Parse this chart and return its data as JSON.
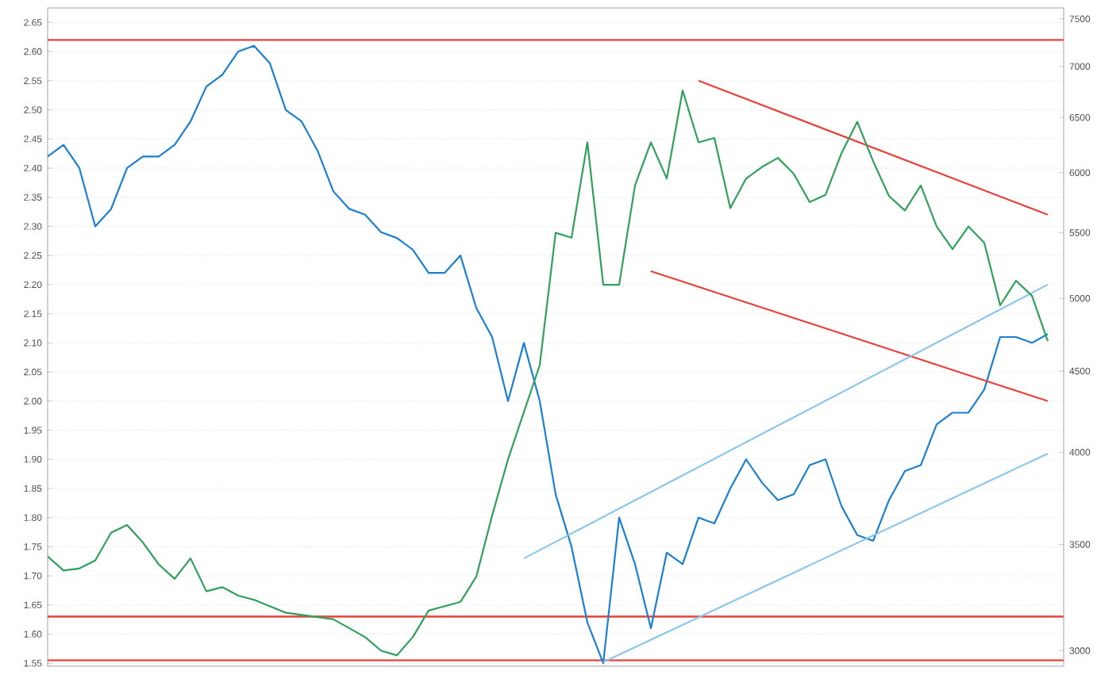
{
  "chart_data": {
    "type": "line",
    "log": "y2",
    "grid": "y",
    "tick_labels": "y",
    "marker": "none",
    "line_style": "solid",
    "categories": [
      null,
      null,
      null,
      null,
      null,
      null,
      null,
      null,
      null,
      null,
      null,
      null,
      null,
      null,
      null,
      null,
      null,
      null,
      null,
      null,
      null,
      null,
      null,
      null,
      null,
      null,
      null,
      null,
      null,
      null,
      null,
      null,
      null,
      null,
      null,
      null,
      null,
      null,
      null,
      null,
      null,
      null,
      null,
      null,
      null,
      null,
      null,
      null,
      null,
      null,
      null,
      null,
      null,
      null,
      null,
      null,
      null,
      null,
      null,
      null,
      null,
      null,
      null,
      null
    ],
    "ylim": [
      1.545,
      2.675
    ],
    "y2lim": [
      2934,
      7620
    ],
    "yticks": [
      {
        "value": 1.55,
        "label": "1.55"
      },
      {
        "value": 1.6,
        "label": "1.60"
      },
      {
        "value": 1.65,
        "label": "1.65"
      },
      {
        "value": 1.7,
        "label": "1.70"
      },
      {
        "value": 1.75,
        "label": "1.75"
      },
      {
        "value": 1.8,
        "label": "1.80"
      },
      {
        "value": 1.85,
        "label": "1.85"
      },
      {
        "value": 1.9,
        "label": "1.90"
      },
      {
        "value": 1.95,
        "label": "1.95"
      },
      {
        "value": 2.0,
        "label": "2.00"
      },
      {
        "value": 2.05,
        "label": "2.05"
      },
      {
        "value": 2.1,
        "label": "2.10"
      },
      {
        "value": 2.15,
        "label": "2.15"
      },
      {
        "value": 2.2,
        "label": "2.20"
      },
      {
        "value": 2.25,
        "label": "2.25"
      },
      {
        "value": 2.3,
        "label": "2.30"
      },
      {
        "value": 2.35,
        "label": "2.35"
      },
      {
        "value": 2.4,
        "label": "2.40"
      },
      {
        "value": 2.45,
        "label": "2.45"
      },
      {
        "value": 2.5,
        "label": "2.50"
      },
      {
        "value": 2.55,
        "label": "2.55"
      },
      {
        "value": 2.6,
        "label": "2.60"
      },
      {
        "value": 2.65,
        "label": "2.65"
      }
    ],
    "y2ticks": [
      3000,
      3500,
      4000,
      4500,
      5000,
      5500,
      6000,
      6500,
      7000,
      7500
    ],
    "series": [
      {
        "color": "#1a7fd0",
        "values": [
          2.42,
          2.44,
          2.4,
          2.3,
          2.33,
          2.4,
          2.42,
          2.42,
          2.44,
          2.48,
          2.54,
          2.56,
          2.6,
          2.61,
          2.58,
          2.5,
          2.48,
          2.43,
          2.36,
          2.33,
          2.32,
          2.29,
          2.28,
          2.26,
          2.22,
          2.22,
          2.25,
          2.16,
          2.11,
          2.0,
          2.1,
          2.0,
          1.84,
          1.75,
          1.62,
          1.55,
          1.8,
          1.72,
          1.61,
          1.74,
          1.72,
          1.8,
          1.79,
          1.85,
          1.9,
          1.86,
          1.83,
          1.84,
          1.89,
          1.9,
          1.82,
          1.77,
          1.76,
          1.83,
          1.88,
          1.89,
          1.96,
          1.98,
          1.98,
          2.02,
          2.11,
          2.11,
          2.1,
          2.115
        ]
      },
      {
        "color": "#2fa05a",
        "axis": "y2",
        "values": [
          3440,
          3370,
          3380,
          3420,
          3560,
          3600,
          3510,
          3400,
          3330,
          3430,
          3270,
          3290,
          3250,
          3230,
          3200,
          3170,
          3160,
          3150,
          3140,
          3100,
          3060,
          3000,
          2980,
          3060,
          3180,
          3200,
          3220,
          3340,
          3650,
          3960,
          4240,
          4540,
          5500,
          5460,
          6270,
          5100,
          5100,
          5890,
          6270,
          5950,
          6760,
          6270,
          6310,
          5700,
          5950,
          6050,
          6130,
          5990,
          5750,
          5810,
          6170,
          6460,
          6100,
          5800,
          5680,
          5890,
          5550,
          5370,
          5550,
          5420,
          4950,
          5130,
          5020,
          4700
        ]
      },
      {
        "color": "#e8403a",
        "values": [
          null,
          null,
          null,
          null,
          null,
          null,
          null,
          null,
          null,
          null,
          null,
          null,
          null,
          null,
          null,
          null,
          null,
          null,
          null,
          null,
          null,
          null,
          null,
          null,
          null,
          null,
          null,
          null,
          null,
          null,
          null,
          null,
          null,
          null,
          null,
          null,
          null,
          null,
          null,
          null,
          null,
          2.55,
          null,
          null,
          null,
          null,
          null,
          null,
          null,
          null,
          null,
          null,
          null,
          null,
          null,
          null,
          null,
          null,
          null,
          null,
          null,
          null,
          null,
          2.32
        ]
      },
      {
        "color": "#e8403a",
        "values": [
          null,
          null,
          null,
          null,
          null,
          null,
          null,
          null,
          null,
          null,
          null,
          null,
          null,
          null,
          null,
          null,
          null,
          null,
          null,
          null,
          null,
          null,
          null,
          null,
          null,
          null,
          null,
          null,
          null,
          null,
          null,
          null,
          null,
          null,
          null,
          null,
          null,
          null,
          2.223,
          null,
          null,
          null,
          null,
          null,
          null,
          null,
          null,
          null,
          null,
          null,
          null,
          null,
          null,
          null,
          null,
          null,
          null,
          null,
          null,
          null,
          null,
          null,
          null,
          2.0
        ]
      },
      {
        "color": "#8cc6ea",
        "values": [
          null,
          null,
          null,
          null,
          null,
          null,
          null,
          null,
          null,
          null,
          null,
          null,
          null,
          null,
          null,
          null,
          null,
          null,
          null,
          null,
          null,
          null,
          null,
          null,
          null,
          null,
          null,
          null,
          null,
          null,
          1.73,
          null,
          null,
          null,
          null,
          null,
          null,
          null,
          null,
          null,
          null,
          null,
          null,
          null,
          null,
          null,
          null,
          null,
          null,
          null,
          null,
          null,
          null,
          null,
          null,
          null,
          null,
          null,
          null,
          null,
          null,
          null,
          null,
          2.2
        ]
      },
      {
        "color": "#8cc6ea",
        "values": [
          null,
          null,
          null,
          null,
          null,
          null,
          null,
          null,
          null,
          null,
          null,
          null,
          null,
          null,
          null,
          null,
          null,
          null,
          null,
          null,
          null,
          null,
          null,
          null,
          null,
          null,
          null,
          null,
          null,
          null,
          null,
          null,
          null,
          null,
          null,
          1.552,
          null,
          null,
          null,
          null,
          null,
          null,
          null,
          null,
          null,
          null,
          null,
          null,
          null,
          null,
          null,
          null,
          null,
          null,
          null,
          null,
          null,
          null,
          null,
          null,
          null,
          null,
          null,
          1.91
        ]
      }
    ],
    "ref_lines": [
      {
        "axis": "y",
        "value": 2.62,
        "color": "#e8403a"
      },
      {
        "axis": "y",
        "value": 1.63,
        "color": "#e8403a"
      },
      {
        "axis": "y",
        "value": 1.555,
        "color": "#e8403a"
      }
    ]
  }
}
